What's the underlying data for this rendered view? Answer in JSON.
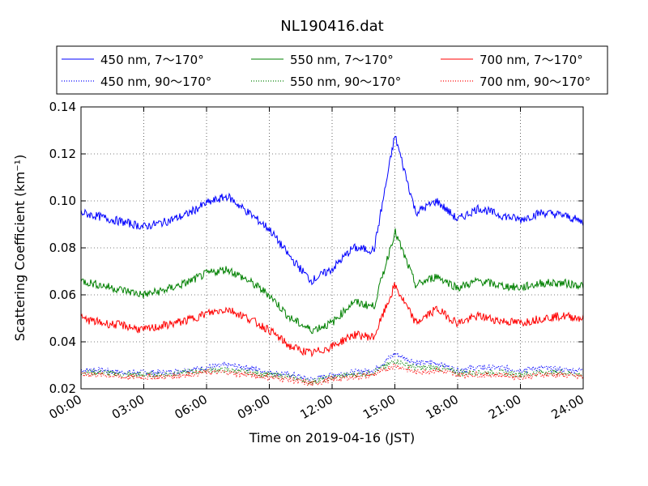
{
  "chart_data": {
    "type": "line",
    "title": "NL190416.dat",
    "xlabel": "Time on 2019-04-16 (JST)",
    "ylabel": "Scattering Coefficient (km⁻¹)",
    "x_unit": "hours",
    "xlim": [
      0,
      24
    ],
    "ylim": [
      0.02,
      0.14
    ],
    "xticks": [
      0,
      3,
      6,
      9,
      12,
      15,
      18,
      21,
      24
    ],
    "xtick_labels": [
      "00:00",
      "03:00",
      "06:00",
      "09:00",
      "12:00",
      "15:00",
      "18:00",
      "21:00",
      "24:00"
    ],
    "yticks": [
      0.02,
      0.04,
      0.06,
      0.08,
      0.1,
      0.12,
      0.14
    ],
    "ytick_labels": [
      "0.02",
      "0.04",
      "0.06",
      "0.08",
      "0.10",
      "0.12",
      "0.14"
    ],
    "grid": true,
    "legend_position": "top",
    "x": [
      0,
      1,
      2,
      3,
      4,
      5,
      6,
      7,
      8,
      9,
      10,
      11,
      12,
      13,
      14,
      15,
      16,
      17,
      18,
      19,
      20,
      21,
      22,
      23,
      24
    ],
    "series": [
      {
        "name": "450 nm, 7～170°",
        "color": "#0000ff",
        "style": "solid",
        "values": [
          0.095,
          0.093,
          0.091,
          0.089,
          0.091,
          0.094,
          0.099,
          0.102,
          0.095,
          0.088,
          0.076,
          0.066,
          0.071,
          0.08,
          0.079,
          0.128,
          0.095,
          0.1,
          0.092,
          0.097,
          0.094,
          0.092,
          0.095,
          0.094,
          0.091
        ]
      },
      {
        "name": "450 nm, 90～170°",
        "color": "#0000ff",
        "style": "dotted",
        "values": [
          0.028,
          0.028,
          0.027,
          0.027,
          0.027,
          0.028,
          0.029,
          0.03,
          0.029,
          0.027,
          0.026,
          0.024,
          0.026,
          0.027,
          0.028,
          0.035,
          0.031,
          0.031,
          0.028,
          0.029,
          0.029,
          0.028,
          0.029,
          0.028,
          0.028
        ]
      },
      {
        "name": "550 nm, 7～170°",
        "color": "#008000",
        "style": "solid",
        "values": [
          0.066,
          0.064,
          0.062,
          0.06,
          0.062,
          0.065,
          0.069,
          0.071,
          0.066,
          0.06,
          0.05,
          0.045,
          0.048,
          0.057,
          0.055,
          0.087,
          0.064,
          0.068,
          0.063,
          0.066,
          0.064,
          0.063,
          0.065,
          0.065,
          0.064
        ]
      },
      {
        "name": "550 nm, 90～170°",
        "color": "#008000",
        "style": "dotted",
        "values": [
          0.027,
          0.027,
          0.026,
          0.026,
          0.026,
          0.027,
          0.028,
          0.028,
          0.027,
          0.026,
          0.025,
          0.023,
          0.025,
          0.026,
          0.027,
          0.032,
          0.029,
          0.029,
          0.027,
          0.027,
          0.027,
          0.026,
          0.027,
          0.027,
          0.026
        ]
      },
      {
        "name": "700 nm, 7～170°",
        "color": "#ff0000",
        "style": "solid",
        "values": [
          0.05,
          0.048,
          0.047,
          0.045,
          0.047,
          0.049,
          0.052,
          0.054,
          0.05,
          0.045,
          0.038,
          0.035,
          0.038,
          0.043,
          0.042,
          0.064,
          0.048,
          0.054,
          0.048,
          0.051,
          0.049,
          0.048,
          0.05,
          0.051,
          0.05
        ]
      },
      {
        "name": "700 nm, 90～170°",
        "color": "#ff0000",
        "style": "dotted",
        "values": [
          0.026,
          0.026,
          0.025,
          0.025,
          0.025,
          0.026,
          0.027,
          0.027,
          0.026,
          0.025,
          0.024,
          0.022,
          0.024,
          0.025,
          0.026,
          0.03,
          0.027,
          0.028,
          0.026,
          0.026,
          0.026,
          0.025,
          0.026,
          0.026,
          0.025
        ]
      }
    ]
  }
}
